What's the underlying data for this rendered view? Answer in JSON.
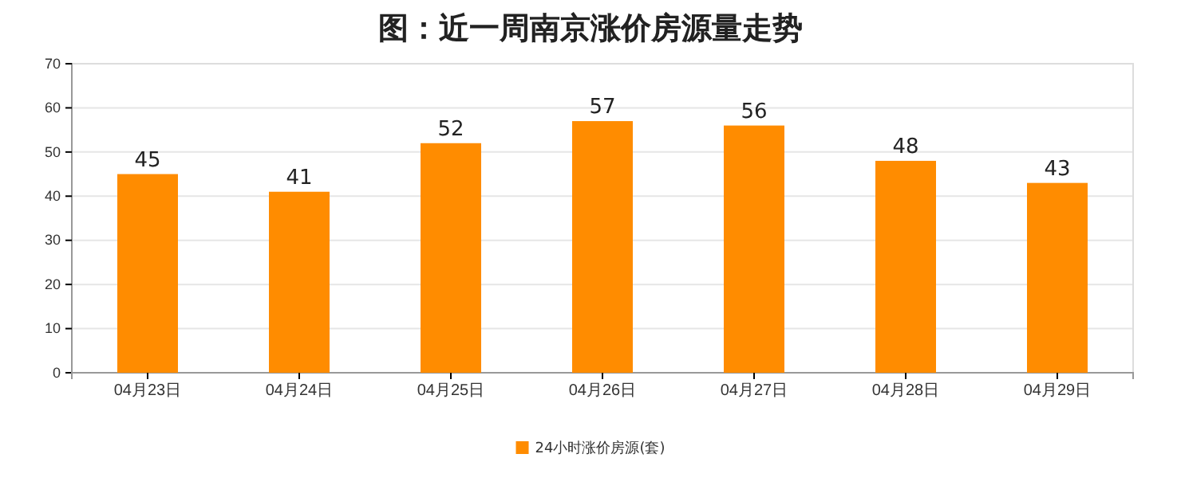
{
  "chart_data": {
    "type": "bar",
    "title": "图：近一周南京涨价房源量走势",
    "categories": [
      "04月23日",
      "04月24日",
      "04月25日",
      "04月26日",
      "04月27日",
      "04月28日",
      "04月29日"
    ],
    "series": [
      {
        "name": "24小时涨价房源(套)",
        "color": "#ff8c00",
        "values": [
          45,
          41,
          52,
          57,
          56,
          48,
          43
        ]
      }
    ],
    "ylim": [
      0,
      70
    ],
    "yticks": [
      0,
      10,
      20,
      30,
      40,
      50,
      60,
      70
    ],
    "grid": "y",
    "legend": "bottom",
    "data_labels": true
  }
}
